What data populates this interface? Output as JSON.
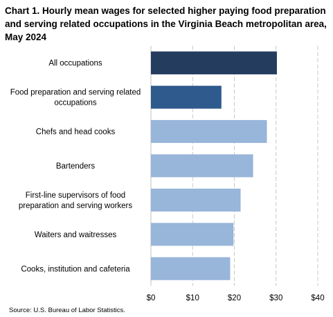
{
  "chart_data": {
    "type": "bar",
    "orientation": "horizontal",
    "title": "Chart 1. Hourly mean wages for selected higher paying food preparation and serving related occupations in the Virginia Beach metropolitan area, May 2024",
    "categories": [
      "All occupations",
      "Food preparation and serving related occupations",
      "Chefs and head cooks",
      "Bartenders",
      "First-line supervisors of food preparation and serving workers",
      "Waiters and waitresses",
      "Cooks, institution and cafeteria"
    ],
    "category_lines": [
      [
        "All occupations"
      ],
      [
        "Food preparation and serving related",
        "occupations"
      ],
      [
        "Chefs and head cooks"
      ],
      [
        "Bartenders"
      ],
      [
        "First-line supervisors of food",
        "preparation and serving workers"
      ],
      [
        "Waiters and waitresses"
      ],
      [
        "Cooks, institution and cafeteria"
      ]
    ],
    "values": [
      30.2,
      16.9,
      27.8,
      24.5,
      21.5,
      19.8,
      19.0
    ],
    "bar_colors": [
      "#243c5e",
      "#2f5a8d",
      "#98b5da",
      "#98b5da",
      "#98b5da",
      "#98b5da",
      "#98b5da"
    ],
    "xlim": [
      0,
      40
    ],
    "ticks": [
      0,
      10,
      20,
      30,
      40
    ],
    "tick_labels": [
      "$0",
      "$10",
      "$20",
      "$30",
      "$40"
    ],
    "xlabel": "",
    "ylabel": "",
    "grid": "vertical dashed"
  },
  "source": "Source: U.S. Bureau of Labor Statistics."
}
